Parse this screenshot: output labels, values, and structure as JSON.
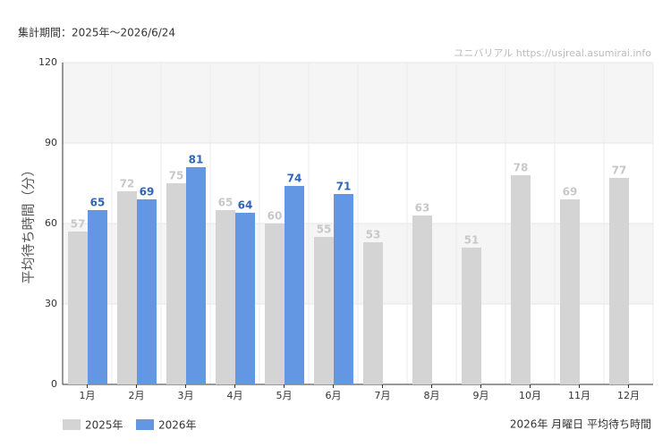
{
  "chart_data": {
    "type": "bar",
    "period_note": "集計期間：2025年～2026/6/24",
    "watermark": "ユニバリアル  https://usjreal.asumirai.info",
    "ylabel": "平均待ち時間（分）",
    "caption": "2026年 月曜日 平均待ち時間",
    "categories": [
      "1月",
      "2月",
      "3月",
      "4月",
      "5月",
      "6月",
      "7月",
      "8月",
      "9月",
      "10月",
      "11月",
      "12月"
    ],
    "series": [
      {
        "name": "2025年",
        "color": "#d4d4d4",
        "label_color": "#c8c8c8",
        "values": [
          57,
          72,
          75,
          65,
          60,
          55,
          53,
          63,
          51,
          78,
          69,
          77
        ]
      },
      {
        "name": "2026年",
        "color": "#6397e3",
        "label_color": "#2f66b8",
        "values": [
          65,
          69,
          81,
          64,
          74,
          71,
          null,
          null,
          null,
          null,
          null,
          null
        ]
      }
    ],
    "ylim": [
      0,
      120
    ],
    "yticks": [
      0,
      30,
      60,
      90,
      120
    ],
    "grid": true
  }
}
